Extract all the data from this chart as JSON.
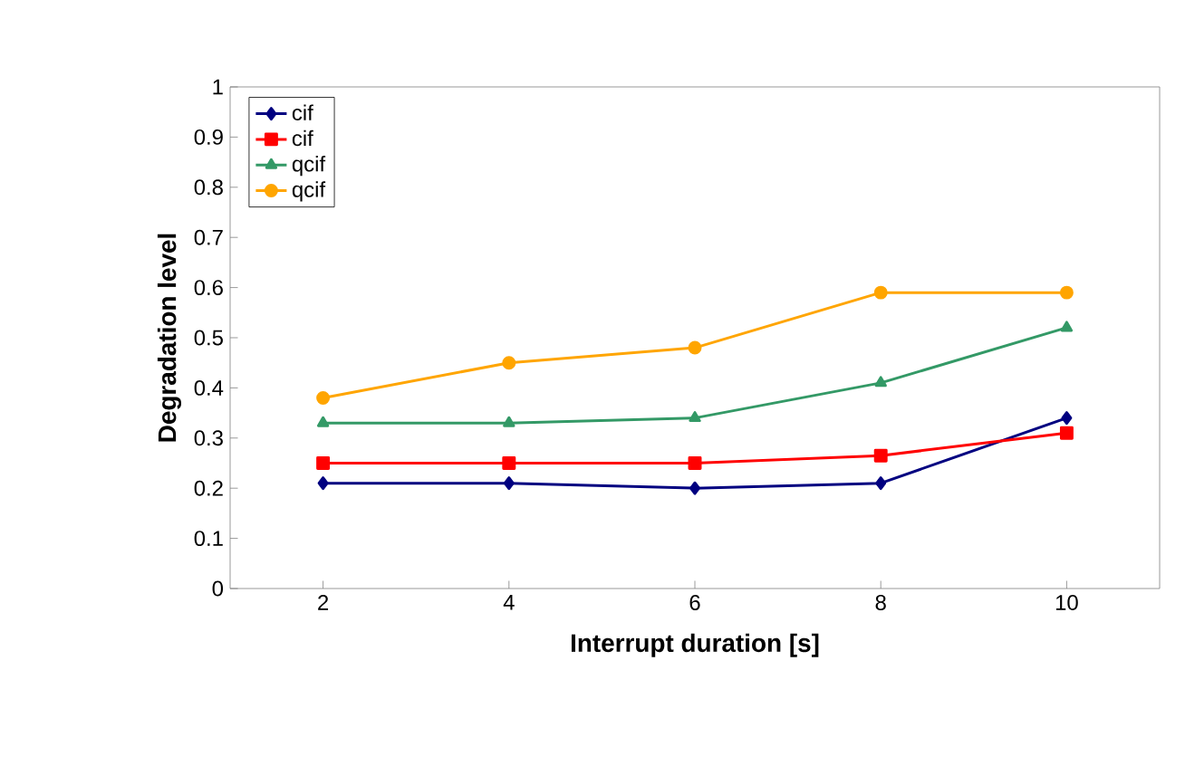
{
  "chart_data": {
    "type": "line",
    "xlabel": "Interrupt duration [s]",
    "ylabel": "Degradation level",
    "categories": [
      "2",
      "4",
      "6",
      "8",
      "10"
    ],
    "ylim": [
      0,
      1
    ],
    "yticks": [
      0,
      0.1,
      0.2,
      0.3,
      0.4,
      0.5,
      0.6,
      0.7,
      0.8,
      0.9,
      1
    ],
    "grid": false,
    "legend": "top left",
    "line_style": "solid",
    "series": [
      {
        "name": "cif",
        "color": "#000080",
        "marker": "diamond",
        "values": [
          0.21,
          0.21,
          0.2,
          0.21,
          0.34
        ]
      },
      {
        "name": "cif",
        "color": "#ff0000",
        "marker": "square",
        "values": [
          0.25,
          0.25,
          0.25,
          0.265,
          0.31
        ]
      },
      {
        "name": "qcif",
        "color": "#339966",
        "marker": "triangle",
        "values": [
          0.33,
          0.33,
          0.34,
          0.41,
          0.52
        ]
      },
      {
        "name": "qcif",
        "color": "#ffa500",
        "marker": "circle",
        "values": [
          0.38,
          0.45,
          0.48,
          0.59,
          0.59
        ]
      }
    ]
  }
}
